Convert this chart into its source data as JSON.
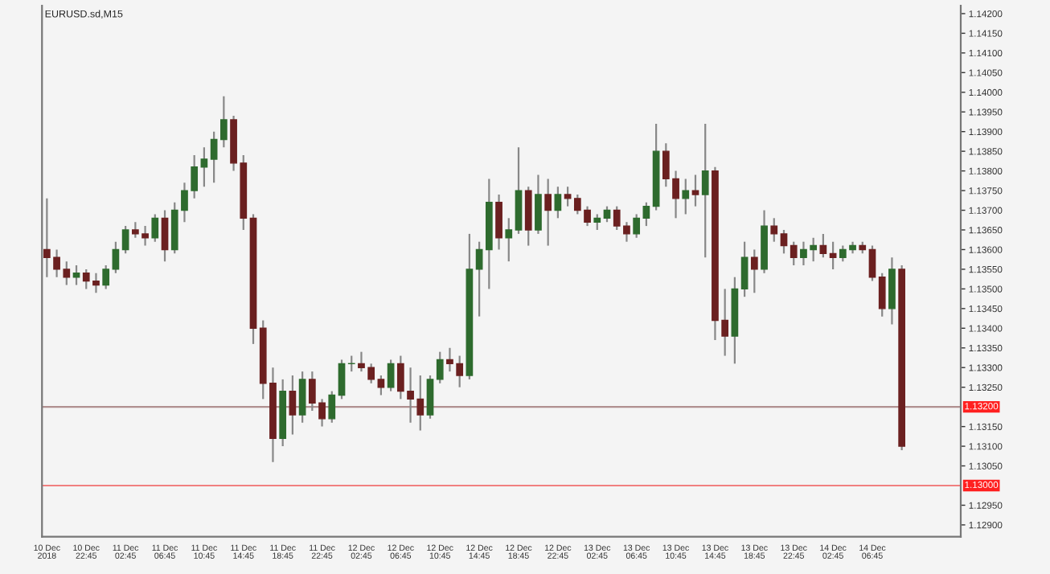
{
  "chart_data": {
    "type": "candlestick",
    "title": "EURUSD.sd,M15",
    "x": [
      "2018-12-10T18:45",
      "2018-12-10T19:45",
      "2018-12-10T20:45",
      "2018-12-10T21:45",
      "2018-12-10T22:45",
      "2018-12-10T23:45",
      "2018-12-11T00:45",
      "2018-12-11T01:45",
      "2018-12-11T02:45",
      "2018-12-11T03:45",
      "2018-12-11T04:45",
      "2018-12-11T05:45",
      "2018-12-11T06:45",
      "2018-12-11T07:45",
      "2018-12-11T08:45",
      "2018-12-11T09:45",
      "2018-12-11T10:45",
      "2018-12-11T11:45",
      "2018-12-11T12:45",
      "2018-12-11T13:45",
      "2018-12-11T14:45",
      "2018-12-11T15:45",
      "2018-12-11T16:45",
      "2018-12-11T17:45",
      "2018-12-11T18:45",
      "2018-12-11T19:45",
      "2018-12-11T20:45",
      "2018-12-11T21:45",
      "2018-12-11T22:45",
      "2018-12-11T23:45",
      "2018-12-12T00:45",
      "2018-12-12T01:45",
      "2018-12-12T02:45",
      "2018-12-12T03:45",
      "2018-12-12T04:45",
      "2018-12-12T05:45",
      "2018-12-12T06:45",
      "2018-12-12T07:45",
      "2018-12-12T08:45",
      "2018-12-12T09:45",
      "2018-12-12T10:45",
      "2018-12-12T11:45",
      "2018-12-12T12:45",
      "2018-12-12T13:45",
      "2018-12-12T14:45",
      "2018-12-12T15:45",
      "2018-12-12T16:45",
      "2018-12-12T17:45",
      "2018-12-12T18:45",
      "2018-12-12T19:45",
      "2018-12-12T20:45",
      "2018-12-12T21:45",
      "2018-12-12T22:45",
      "2018-12-12T23:45",
      "2018-12-13T00:45",
      "2018-12-13T01:45",
      "2018-12-13T02:45",
      "2018-12-13T03:45",
      "2018-12-13T04:45",
      "2018-12-13T05:45",
      "2018-12-13T06:45",
      "2018-12-13T07:45",
      "2018-12-13T08:45",
      "2018-12-13T09:45",
      "2018-12-13T10:45",
      "2018-12-13T11:45",
      "2018-12-13T12:45",
      "2018-12-13T13:45",
      "2018-12-13T14:45",
      "2018-12-13T15:45",
      "2018-12-13T16:45",
      "2018-12-13T17:45",
      "2018-12-13T18:45",
      "2018-12-13T19:45",
      "2018-12-13T20:45",
      "2018-12-13T21:45",
      "2018-12-13T22:45",
      "2018-12-13T23:45",
      "2018-12-14T00:45",
      "2018-12-14T01:45",
      "2018-12-14T02:45",
      "2018-12-14T03:45",
      "2018-12-14T04:45",
      "2018-12-14T05:45",
      "2018-12-14T06:45",
      "2018-12-14T07:45",
      "2018-12-14T08:45",
      "2018-12-14T09:45"
    ],
    "ohlc": [
      [
        1.136,
        1.1373,
        1.1353,
        1.1358
      ],
      [
        1.1358,
        1.136,
        1.1353,
        1.1355
      ],
      [
        1.1355,
        1.1357,
        1.1351,
        1.1353
      ],
      [
        1.1353,
        1.1356,
        1.1351,
        1.1354
      ],
      [
        1.1354,
        1.1355,
        1.135,
        1.1352
      ],
      [
        1.1352,
        1.1354,
        1.1349,
        1.1351
      ],
      [
        1.1351,
        1.1356,
        1.135,
        1.1355
      ],
      [
        1.1355,
        1.1362,
        1.1354,
        1.136
      ],
      [
        1.136,
        1.1366,
        1.1359,
        1.1365
      ],
      [
        1.1365,
        1.1367,
        1.1363,
        1.1364
      ],
      [
        1.1364,
        1.1366,
        1.1361,
        1.1363
      ],
      [
        1.1363,
        1.1369,
        1.1362,
        1.1368
      ],
      [
        1.1368,
        1.137,
        1.1357,
        1.136
      ],
      [
        1.136,
        1.1372,
        1.1359,
        1.137
      ],
      [
        1.137,
        1.1377,
        1.1367,
        1.1375
      ],
      [
        1.1375,
        1.1384,
        1.1373,
        1.1381
      ],
      [
        1.1381,
        1.1386,
        1.1376,
        1.1383
      ],
      [
        1.1383,
        1.139,
        1.1377,
        1.1388
      ],
      [
        1.1388,
        1.1399,
        1.1386,
        1.1393
      ],
      [
        1.1393,
        1.1394,
        1.138,
        1.1382
      ],
      [
        1.1382,
        1.1384,
        1.1365,
        1.1368
      ],
      [
        1.1368,
        1.1369,
        1.1336,
        1.134
      ],
      [
        1.134,
        1.1342,
        1.1322,
        1.1326
      ],
      [
        1.1326,
        1.133,
        1.1306,
        1.1312
      ],
      [
        1.1312,
        1.1327,
        1.131,
        1.1324
      ],
      [
        1.1324,
        1.1328,
        1.1313,
        1.1318
      ],
      [
        1.1318,
        1.1329,
        1.1316,
        1.1327
      ],
      [
        1.1327,
        1.1329,
        1.1319,
        1.1321
      ],
      [
        1.1321,
        1.1322,
        1.1315,
        1.1317
      ],
      [
        1.1317,
        1.1324,
        1.1316,
        1.1323
      ],
      [
        1.1323,
        1.1332,
        1.1322,
        1.1331
      ],
      [
        1.1331,
        1.1333,
        1.1329,
        1.1331
      ],
      [
        1.1331,
        1.1334,
        1.1329,
        1.133
      ],
      [
        1.133,
        1.1331,
        1.1326,
        1.1327
      ],
      [
        1.1327,
        1.1328,
        1.1323,
        1.1325
      ],
      [
        1.1325,
        1.1332,
        1.1324,
        1.1331
      ],
      [
        1.1331,
        1.1333,
        1.1322,
        1.1324
      ],
      [
        1.1324,
        1.133,
        1.1316,
        1.1322
      ],
      [
        1.1322,
        1.1328,
        1.1314,
        1.1318
      ],
      [
        1.1318,
        1.1328,
        1.1317,
        1.1327
      ],
      [
        1.1327,
        1.1334,
        1.1326,
        1.1332
      ],
      [
        1.1332,
        1.1335,
        1.1329,
        1.1331
      ],
      [
        1.1331,
        1.1333,
        1.1325,
        1.1328
      ],
      [
        1.1328,
        1.1364,
        1.1327,
        1.1355
      ],
      [
        1.1355,
        1.1362,
        1.1343,
        1.136
      ],
      [
        1.136,
        1.1378,
        1.135,
        1.1372
      ],
      [
        1.1372,
        1.1374,
        1.136,
        1.1363
      ],
      [
        1.1363,
        1.1368,
        1.1357,
        1.1365
      ],
      [
        1.1365,
        1.1386,
        1.1364,
        1.1375
      ],
      [
        1.1375,
        1.1376,
        1.1361,
        1.1365
      ],
      [
        1.1365,
        1.1379,
        1.1364,
        1.1374
      ],
      [
        1.1374,
        1.1378,
        1.1361,
        1.137
      ],
      [
        1.137,
        1.1376,
        1.1368,
        1.1374
      ],
      [
        1.1374,
        1.1376,
        1.1371,
        1.1373
      ],
      [
        1.1373,
        1.1374,
        1.1369,
        1.137
      ],
      [
        1.137,
        1.1371,
        1.1366,
        1.1367
      ],
      [
        1.1367,
        1.1369,
        1.1365,
        1.1368
      ],
      [
        1.1368,
        1.1371,
        1.1367,
        1.137
      ],
      [
        1.137,
        1.1371,
        1.1365,
        1.1366
      ],
      [
        1.1366,
        1.1367,
        1.1362,
        1.1364
      ],
      [
        1.1364,
        1.1369,
        1.1363,
        1.1368
      ],
      [
        1.1368,
        1.1372,
        1.1366,
        1.1371
      ],
      [
        1.1371,
        1.1392,
        1.137,
        1.1385
      ],
      [
        1.1385,
        1.1387,
        1.1376,
        1.1378
      ],
      [
        1.1378,
        1.138,
        1.1368,
        1.1373
      ],
      [
        1.1373,
        1.1378,
        1.1369,
        1.1375
      ],
      [
        1.1375,
        1.1379,
        1.1371,
        1.1374
      ],
      [
        1.1374,
        1.1392,
        1.1358,
        1.138
      ],
      [
        1.138,
        1.1381,
        1.1337,
        1.1342
      ],
      [
        1.1342,
        1.135,
        1.1333,
        1.1338
      ],
      [
        1.1338,
        1.1353,
        1.1331,
        1.135
      ],
      [
        1.135,
        1.1362,
        1.1348,
        1.1358
      ],
      [
        1.1358,
        1.136,
        1.1349,
        1.1355
      ],
      [
        1.1355,
        1.137,
        1.1354,
        1.1366
      ],
      [
        1.1366,
        1.1368,
        1.1362,
        1.1364
      ],
      [
        1.1364,
        1.1365,
        1.1359,
        1.1361
      ],
      [
        1.1361,
        1.1362,
        1.1356,
        1.1358
      ],
      [
        1.1358,
        1.1362,
        1.1356,
        1.136
      ],
      [
        1.136,
        1.1363,
        1.1357,
        1.1361
      ],
      [
        1.1361,
        1.1364,
        1.1358,
        1.1359
      ],
      [
        1.1359,
        1.1362,
        1.1355,
        1.1358
      ],
      [
        1.1358,
        1.1361,
        1.1357,
        1.136
      ],
      [
        1.136,
        1.1362,
        1.1359,
        1.1361
      ],
      [
        1.1361,
        1.1362,
        1.1359,
        1.136
      ],
      [
        1.136,
        1.1361,
        1.1352,
        1.1353
      ],
      [
        1.1353,
        1.1354,
        1.1343,
        1.1345
      ],
      [
        1.1345,
        1.1358,
        1.1341,
        1.1355
      ],
      [
        1.1355,
        1.1356,
        1.1309,
        1.131
      ]
    ],
    "xlim": [
      "2018-12-10T18:15",
      "2018-12-14T15:45"
    ],
    "xticks": [
      {
        "value": "2018-12-10T18:45",
        "label": "10 Dec 2018"
      },
      {
        "value": "2018-12-10T22:45",
        "label": "10 Dec 22:45"
      },
      {
        "value": "2018-12-11T02:45",
        "label": "11 Dec 02:45"
      },
      {
        "value": "2018-12-11T06:45",
        "label": "11 Dec 06:45"
      },
      {
        "value": "2018-12-11T10:45",
        "label": "11 Dec 10:45"
      },
      {
        "value": "2018-12-11T14:45",
        "label": "11 Dec 14:45"
      },
      {
        "value": "2018-12-11T18:45",
        "label": "11 Dec 18:45"
      },
      {
        "value": "2018-12-11T22:45",
        "label": "11 Dec 22:45"
      },
      {
        "value": "2018-12-12T02:45",
        "label": "12 Dec 02:45"
      },
      {
        "value": "2018-12-12T06:45",
        "label": "12 Dec 06:45"
      },
      {
        "value": "2018-12-12T10:45",
        "label": "12 Dec 10:45"
      },
      {
        "value": "2018-12-12T14:45",
        "label": "12 Dec 14:45"
      },
      {
        "value": "2018-12-12T18:45",
        "label": "12 Dec 18:45"
      },
      {
        "value": "2018-12-12T22:45",
        "label": "12 Dec 22:45"
      },
      {
        "value": "2018-12-13T02:45",
        "label": "13 Dec 02:45"
      },
      {
        "value": "2018-12-13T06:45",
        "label": "13 Dec 06:45"
      },
      {
        "value": "2018-12-13T10:45",
        "label": "13 Dec 10:45"
      },
      {
        "value": "2018-12-13T14:45",
        "label": "13 Dec 14:45"
      },
      {
        "value": "2018-12-13T18:45",
        "label": "13 Dec 18:45"
      },
      {
        "value": "2018-12-13T22:45",
        "label": "13 Dec 22:45"
      },
      {
        "value": "2018-12-14T02:45",
        "label": "14 Dec 02:45"
      },
      {
        "value": "2018-12-14T06:45",
        "label": "14 Dec 06:45"
      }
    ],
    "ylim": [
      1.1287,
      1.1422
    ],
    "yticks": [
      {
        "value": 1.129,
        "label": "1.12900"
      },
      {
        "value": 1.1295,
        "label": "1.12950"
      },
      {
        "value": 1.1305,
        "label": "1.13050"
      },
      {
        "value": 1.131,
        "label": "1.13100"
      },
      {
        "value": 1.1315,
        "label": "1.13150"
      },
      {
        "value": 1.1325,
        "label": "1.13250"
      },
      {
        "value": 1.133,
        "label": "1.13300"
      },
      {
        "value": 1.1335,
        "label": "1.13350"
      },
      {
        "value": 1.134,
        "label": "1.13400"
      },
      {
        "value": 1.1345,
        "label": "1.13450"
      },
      {
        "value": 1.135,
        "label": "1.13500"
      },
      {
        "value": 1.1355,
        "label": "1.13550"
      },
      {
        "value": 1.136,
        "label": "1.13600"
      },
      {
        "value": 1.1365,
        "label": "1.13650"
      },
      {
        "value": 1.137,
        "label": "1.13700"
      },
      {
        "value": 1.1375,
        "label": "1.13750"
      },
      {
        "value": 1.138,
        "label": "1.13800"
      },
      {
        "value": 1.1385,
        "label": "1.13850"
      },
      {
        "value": 1.139,
        "label": "1.13900"
      },
      {
        "value": 1.1395,
        "label": "1.13950"
      },
      {
        "value": 1.14,
        "label": "1.14000"
      },
      {
        "value": 1.1405,
        "label": "1.14050"
      },
      {
        "value": 1.141,
        "label": "1.14100"
      },
      {
        "value": 1.1415,
        "label": "1.14150"
      },
      {
        "value": 1.142,
        "label": "1.14200"
      }
    ],
    "ref_lines": [
      {
        "axis": "y",
        "value": 1.132,
        "label": "1.13200",
        "color": "#b09090"
      },
      {
        "axis": "y",
        "value": 1.13,
        "label": "1.13000",
        "color": "#f08080"
      }
    ],
    "grid": false,
    "legend": false
  }
}
